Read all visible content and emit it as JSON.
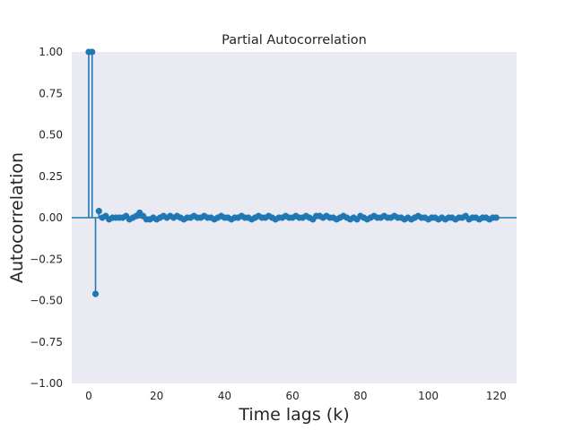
{
  "chart_data": {
    "type": "scatter",
    "subtype": "stem",
    "title": "Partial Autocorrelation",
    "xlabel": "Time lags (k)",
    "ylabel": "Autocorrelation",
    "xlim": [
      -5,
      126
    ],
    "ylim": [
      -1.0,
      1.0
    ],
    "xticks": [
      0,
      20,
      40,
      60,
      80,
      100,
      120
    ],
    "yticks": [
      -1.0,
      -0.75,
      -0.5,
      -0.25,
      0.0,
      0.25,
      0.5,
      0.75,
      1.0
    ],
    "xtick_labels": [
      "0",
      "20",
      "40",
      "60",
      "80",
      "100",
      "120"
    ],
    "ytick_labels": [
      "−1.00",
      "−0.75",
      "−0.50",
      "−0.25",
      "0.00",
      "0.25",
      "0.50",
      "0.75",
      "1.00"
    ],
    "grid": false,
    "colors": {
      "series": "#1f77b4",
      "background": "#eaeaf2"
    },
    "series": [
      {
        "x": [
          0,
          1,
          2,
          3,
          4,
          5,
          6,
          7,
          8,
          9,
          10,
          11,
          12,
          13,
          14,
          15,
          16,
          17,
          18,
          19,
          20,
          21,
          22,
          23,
          24,
          25,
          26,
          27,
          28,
          29,
          30,
          31,
          32,
          33,
          34,
          35,
          36,
          37,
          38,
          39,
          40,
          41,
          42,
          43,
          44,
          45,
          46,
          47,
          48,
          49,
          50,
          51,
          52,
          53,
          54,
          55,
          56,
          57,
          58,
          59,
          60,
          61,
          62,
          63,
          64,
          65,
          66,
          67,
          68,
          69,
          70,
          71,
          72,
          73,
          74,
          75,
          76,
          77,
          78,
          79,
          80,
          81,
          82,
          83,
          84,
          85,
          86,
          87,
          88,
          89,
          90,
          91,
          92,
          93,
          94,
          95,
          96,
          97,
          98,
          99,
          100,
          101,
          102,
          103,
          104,
          105,
          106,
          107,
          108,
          109,
          110,
          111,
          112,
          113,
          114,
          115,
          116,
          117,
          118,
          119,
          120
        ],
        "y": [
          1.0,
          1.0,
          -0.46,
          0.04,
          0.0,
          0.01,
          -0.01,
          0.0,
          0.0,
          0.0,
          0.0,
          0.01,
          -0.01,
          0.0,
          0.01,
          0.03,
          0.01,
          -0.01,
          -0.01,
          0.0,
          -0.01,
          0.0,
          0.01,
          0.0,
          0.01,
          0.0,
          0.01,
          0.0,
          -0.01,
          0.0,
          0.0,
          0.01,
          0.0,
          0.0,
          0.01,
          0.0,
          0.0,
          -0.01,
          0.0,
          0.01,
          0.0,
          0.0,
          -0.01,
          0.0,
          0.0,
          0.01,
          0.0,
          0.0,
          -0.01,
          0.0,
          0.01,
          0.0,
          0.0,
          0.01,
          0.0,
          -0.01,
          0.0,
          0.0,
          0.01,
          0.0,
          0.0,
          0.01,
          0.0,
          0.0,
          0.01,
          0.0,
          -0.01,
          0.01,
          0.01,
          0.0,
          0.01,
          0.0,
          0.0,
          -0.01,
          0.0,
          0.01,
          0.0,
          -0.01,
          0.0,
          -0.01,
          0.01,
          0.0,
          -0.01,
          0.0,
          0.01,
          0.0,
          0.0,
          0.01,
          0.0,
          0.0,
          0.01,
          0.0,
          0.0,
          -0.01,
          0.0,
          -0.01,
          0.0,
          0.01,
          0.0,
          0.0,
          -0.01,
          0.0,
          0.0,
          -0.01,
          0.0,
          -0.01,
          0.0,
          0.0,
          -0.01,
          0.0,
          0.0,
          0.01,
          -0.01,
          0.0,
          0.0,
          -0.01,
          0.0,
          0.0,
          -0.01,
          0.0,
          0.0
        ]
      }
    ]
  }
}
